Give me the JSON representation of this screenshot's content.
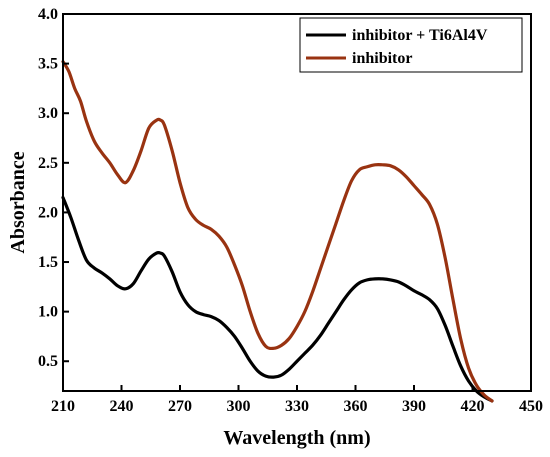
{
  "chart_data": {
    "type": "line",
    "xlabel": "Wavelength (nm)",
    "ylabel": "Absorbance",
    "xlim": [
      210,
      450
    ],
    "ylim": [
      0.2,
      4.0
    ],
    "xticks": [
      210,
      240,
      270,
      300,
      330,
      360,
      390,
      420,
      450
    ],
    "yticks": [
      0.5,
      1.0,
      1.5,
      2.0,
      2.5,
      3.0,
      3.5,
      4.0
    ],
    "xtick_labels": [
      "210",
      "240",
      "270",
      "300",
      "330",
      "360",
      "390",
      "420",
      "450"
    ],
    "ytick_labels": [
      "0.5",
      "1.0",
      "1.5",
      "2.0",
      "2.5",
      "3.0",
      "3.5",
      "4.0"
    ],
    "grid": false,
    "legend_position": "top-right",
    "series": [
      {
        "name": "inhibitor + Ti6Al4V",
        "color": "#000000",
        "x": [
          210,
          214,
          218,
          222,
          226,
          230,
          234,
          238,
          242,
          246,
          250,
          254,
          258,
          260,
          262,
          266,
          270,
          274,
          278,
          282,
          286,
          290,
          294,
          298,
          302,
          306,
          310,
          314,
          318,
          322,
          326,
          330,
          334,
          338,
          342,
          346,
          350,
          354,
          358,
          362,
          366,
          370,
          374,
          378,
          382,
          386,
          390,
          394,
          398,
          402,
          406,
          410,
          414,
          418,
          422,
          426,
          430
        ],
        "y": [
          2.15,
          1.95,
          1.72,
          1.52,
          1.44,
          1.39,
          1.33,
          1.26,
          1.23,
          1.28,
          1.41,
          1.53,
          1.59,
          1.59,
          1.56,
          1.4,
          1.2,
          1.07,
          1.0,
          0.97,
          0.95,
          0.91,
          0.84,
          0.75,
          0.63,
          0.5,
          0.4,
          0.35,
          0.34,
          0.36,
          0.42,
          0.5,
          0.58,
          0.66,
          0.76,
          0.88,
          1.0,
          1.12,
          1.22,
          1.29,
          1.32,
          1.33,
          1.33,
          1.32,
          1.3,
          1.26,
          1.21,
          1.17,
          1.12,
          1.03,
          0.86,
          0.65,
          0.45,
          0.3,
          0.2,
          0.14,
          0.1
        ]
      },
      {
        "name": "inhibitor",
        "color": "#993311",
        "x": [
          210,
          213,
          216,
          219,
          222,
          226,
          230,
          234,
          238,
          242,
          246,
          250,
          254,
          258,
          260,
          262,
          266,
          270,
          274,
          278,
          282,
          286,
          290,
          294,
          298,
          302,
          306,
          310,
          314,
          318,
          322,
          326,
          330,
          334,
          338,
          342,
          346,
          350,
          354,
          358,
          362,
          366,
          370,
          374,
          378,
          382,
          386,
          390,
          394,
          398,
          402,
          406,
          410,
          414,
          418,
          422,
          426,
          430
        ],
        "y": [
          3.52,
          3.42,
          3.25,
          3.12,
          2.92,
          2.72,
          2.6,
          2.5,
          2.38,
          2.3,
          2.42,
          2.62,
          2.85,
          2.93,
          2.93,
          2.88,
          2.62,
          2.3,
          2.05,
          1.93,
          1.87,
          1.83,
          1.76,
          1.65,
          1.47,
          1.26,
          1.0,
          0.78,
          0.65,
          0.63,
          0.66,
          0.73,
          0.85,
          1.0,
          1.2,
          1.43,
          1.66,
          1.89,
          2.12,
          2.32,
          2.43,
          2.46,
          2.48,
          2.48,
          2.47,
          2.43,
          2.36,
          2.27,
          2.18,
          2.08,
          1.88,
          1.54,
          1.12,
          0.72,
          0.43,
          0.26,
          0.16,
          0.1
        ]
      }
    ]
  }
}
